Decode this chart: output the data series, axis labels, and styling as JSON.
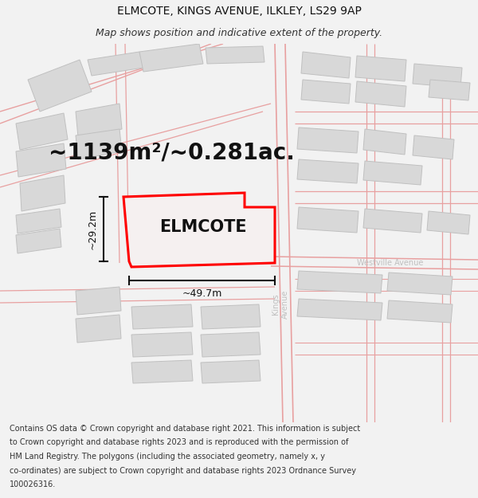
{
  "title_line1": "ELMCOTE, KINGS AVENUE, ILKLEY, LS29 9AP",
  "title_line2": "Map shows position and indicative extent of the property.",
  "area_label": "~1139m²/~0.281ac.",
  "property_name": "ELMCOTE",
  "dim_width": "~49.7m",
  "dim_height": "~29.2m",
  "street_label": "Kings\nAvenue",
  "westville_label": "Westville Avenue",
  "footer_lines": [
    "Contains OS data © Crown copyright and database right 2021. This information is subject",
    "to Crown copyright and database rights 2023 and is reproduced with the permission of",
    "HM Land Registry. The polygons (including the associated geometry, namely x, y",
    "co-ordinates) are subject to Crown copyright and database rights 2023 Ordnance Survey",
    "100026316."
  ],
  "bg_color": "#f2f2f2",
  "map_bg": "#ffffff",
  "road_color": "#e8a0a0",
  "building_fill": "#d8d8d8",
  "building_edge": "#c0c0c0",
  "highlight_color": "#ff0000",
  "highlight_fill": "#f5f0f0",
  "title_fontsize": 10,
  "subtitle_fontsize": 9,
  "area_fontsize": 20,
  "property_fontsize": 15,
  "dim_fontsize": 9,
  "street_fontsize": 7,
  "footer_fontsize": 7
}
